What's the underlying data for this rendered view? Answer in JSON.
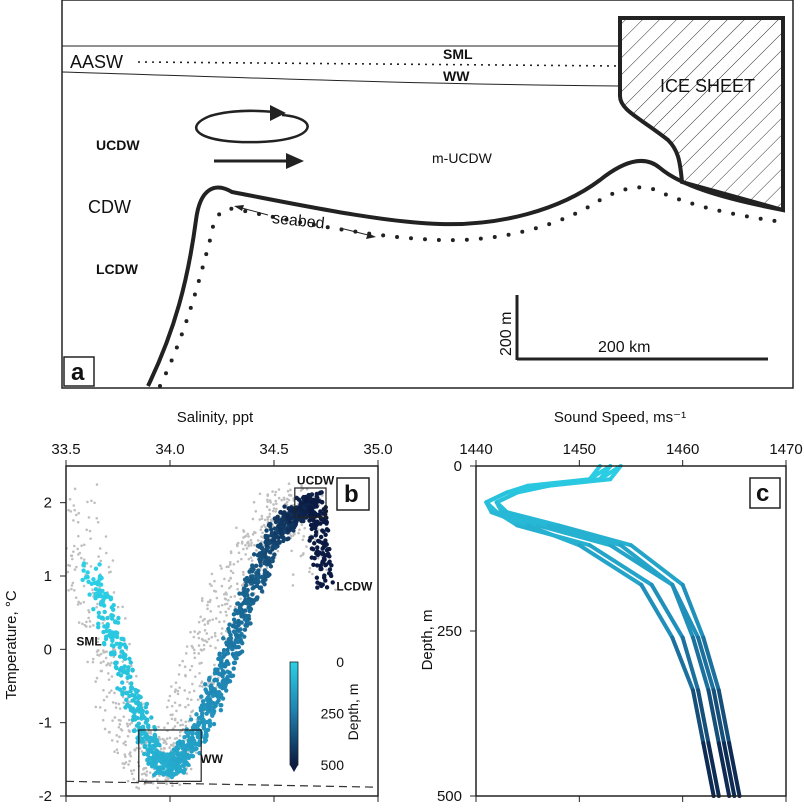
{
  "panel_a": {
    "letter": "a",
    "labels": {
      "aasw": "AASW",
      "sml": "SML",
      "ww": "WW",
      "ice_sheet": "ICE SHEET",
      "ucdw": "UCDW",
      "cdw": "CDW",
      "lcdw": "LCDW",
      "mucdw": "m-UCDW",
      "seabed": "seabed",
      "scale_vertical": "200 m",
      "scale_horizontal": "200 km"
    }
  },
  "panel_b": {
    "letter": "b",
    "labels": {
      "ucdw": "UCDW",
      "lcdw": "LCDW",
      "sml": "SML",
      "ww": "WW"
    },
    "colorbar": {
      "label": "Depth, m",
      "ticks": [
        0,
        250,
        500
      ],
      "colors": [
        "#2bd0e6",
        "#1f86b4",
        "#0b1a42"
      ]
    }
  },
  "panel_c": {
    "letter": "c"
  },
  "chart_data": [
    {
      "type": "scatter",
      "xlabel": "Salinity, ppt",
      "ylabel": "Temperature, °C",
      "xlim": [
        33.5,
        35.0
      ],
      "ylim": [
        -2,
        2.5
      ],
      "xticks": [
        "33.5",
        "34.0",
        "34.5",
        "35.0"
      ],
      "yticks": [
        "-2",
        "-1",
        "0",
        "1",
        "2"
      ],
      "grid": false,
      "series": [
        {
          "color": "#bfbfbf",
          "x": [
            33.55,
            33.6,
            33.65,
            33.7,
            33.75,
            33.8,
            33.85,
            33.9,
            33.95,
            34.0,
            34.05,
            34.1,
            34.15,
            34.2,
            34.25,
            34.3,
            34.35,
            34.4,
            34.45,
            34.5,
            34.55,
            34.6,
            34.65,
            34.7
          ],
          "y": [
            2.0,
            1.3,
            0.6,
            0.0,
            -0.5,
            -1.0,
            -1.4,
            -1.6,
            -1.6,
            -1.4,
            -1.1,
            -0.8,
            -0.4,
            0.0,
            0.4,
            0.8,
            1.1,
            1.4,
            1.6,
            1.8,
            1.9,
            2.0,
            1.8,
            1.0
          ]
        },
        {
          "x": [
            33.62,
            33.7,
            33.78,
            33.85,
            33.9,
            33.95,
            34.0,
            34.05,
            34.1,
            34.15,
            34.2,
            34.25,
            34.3,
            34.35,
            34.4,
            34.45,
            34.5,
            34.55,
            34.6,
            34.65,
            34.7,
            34.72,
            34.74
          ],
          "y": [
            1.1,
            0.4,
            -0.3,
            -0.9,
            -1.3,
            -1.55,
            -1.6,
            -1.5,
            -1.3,
            -1.05,
            -0.7,
            -0.35,
            0.05,
            0.45,
            0.85,
            1.2,
            1.5,
            1.7,
            1.85,
            1.98,
            2.0,
            1.5,
            0.9
          ],
          "depth": [
            0,
            20,
            40,
            60,
            90,
            110,
            120,
            140,
            160,
            190,
            220,
            250,
            280,
            310,
            340,
            370,
            400,
            430,
            460,
            480,
            500,
            500,
            500
          ]
        }
      ],
      "annotations": [
        {
          "text": "UCDW",
          "x": 34.7,
          "y": 2.25
        },
        {
          "text": "LCDW",
          "x": 34.8,
          "y": 0.8
        },
        {
          "text": "SML",
          "x": 33.55,
          "y": 0.05
        },
        {
          "text": "WW",
          "x": 34.2,
          "y": -1.55
        }
      ],
      "boxes": [
        {
          "xlim": [
            34.6,
            34.75
          ],
          "ylim": [
            1.8,
            2.2
          ]
        },
        {
          "xlim": [
            33.85,
            34.15
          ],
          "ylim": [
            -1.8,
            -1.1
          ]
        }
      ],
      "freezing_line": {
        "x": [
          33.5,
          35.0
        ],
        "y": [
          -1.8,
          -1.88
        ]
      }
    },
    {
      "type": "line",
      "xlabel": "Sound Speed, ms⁻¹",
      "ylabel": "Depth, m",
      "xlim": [
        1440,
        1470
      ],
      "ylim": [
        500,
        0
      ],
      "xticks": [
        "1440",
        "1450",
        "1460",
        "1470"
      ],
      "yticks": [
        "0",
        "250",
        "500"
      ],
      "grid": false,
      "profiles": [
        {
          "x": [
            1453,
            1452,
            1446,
            1443,
            1441,
            1442,
            1446,
            1453,
            1459,
            1461,
            1462.5,
            1463.5,
            1464.5
          ],
          "y": [
            0,
            20,
            30,
            40,
            55,
            70,
            90,
            120,
            180,
            260,
            340,
            420,
            500
          ]
        },
        {
          "x": [
            1454,
            1453,
            1447,
            1444,
            1442,
            1443,
            1448,
            1455,
            1460,
            1462,
            1463.5,
            1464.5,
            1465.5
          ],
          "y": [
            0,
            20,
            30,
            40,
            55,
            70,
            90,
            120,
            180,
            260,
            340,
            420,
            500
          ]
        },
        {
          "x": [
            1452,
            1451,
            1445,
            1443,
            1441,
            1442,
            1444,
            1451,
            1457,
            1460,
            1461.5,
            1462.5,
            1463.5
          ],
          "y": [
            0,
            20,
            30,
            40,
            55,
            70,
            90,
            120,
            180,
            260,
            340,
            420,
            500
          ]
        },
        {
          "x": [
            1453,
            1451,
            1446,
            1443,
            1441,
            1441.5,
            1445,
            1450,
            1456,
            1459,
            1461,
            1462,
            1463
          ],
          "y": [
            0,
            20,
            30,
            40,
            55,
            70,
            90,
            120,
            180,
            260,
            340,
            420,
            500
          ]
        },
        {
          "x": [
            1454,
            1452,
            1447,
            1444,
            1442,
            1442.5,
            1447,
            1454,
            1459,
            1461.5,
            1463,
            1464,
            1465
          ],
          "y": [
            0,
            20,
            30,
            40,
            55,
            70,
            90,
            120,
            180,
            260,
            340,
            420,
            500
          ]
        }
      ]
    }
  ]
}
